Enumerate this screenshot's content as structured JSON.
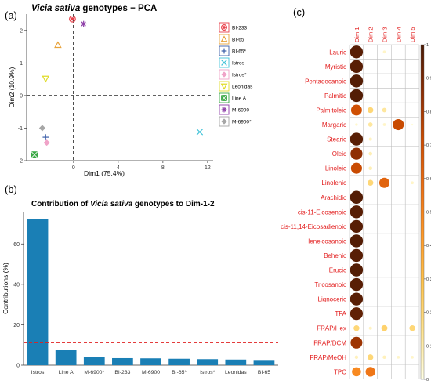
{
  "panels": {
    "a_label": "(a)",
    "b_label": "(b)",
    "c_label": "(c)"
  },
  "chart_data": [
    {
      "type": "scatter",
      "title_italic": "Vicia sativa",
      "title_rest": " genotypes − PCA",
      "xlabel": "Dim1 (75.4%)",
      "ylabel": "Dim2 (10.9%)",
      "xlim": [
        -4.2,
        12.5
      ],
      "ylim": [
        -2.0,
        2.5
      ],
      "xticks": [
        0,
        4,
        8,
        12
      ],
      "yticks": [
        -2,
        -1,
        0,
        1,
        2
      ],
      "points": [
        {
          "name": "BI-233",
          "x": -0.1,
          "y": 2.35,
          "color": "#e8414b",
          "marker": "circle-x"
        },
        {
          "name": "BI-65",
          "x": -1.4,
          "y": 1.55,
          "color": "#e8a33c",
          "marker": "triangle"
        },
        {
          "name": "BI-65*",
          "x": -2.5,
          "y": -1.28,
          "color": "#3b5ea8",
          "marker": "plus"
        },
        {
          "name": "Istros",
          "x": 11.3,
          "y": -1.12,
          "color": "#45c4d9",
          "marker": "x"
        },
        {
          "name": "Istros*",
          "x": -2.4,
          "y": -1.45,
          "color": "#f0a3c8",
          "marker": "diamond"
        },
        {
          "name": "Leonidas",
          "x": -2.5,
          "y": 0.52,
          "color": "#e0dc2a",
          "marker": "triangle-down"
        },
        {
          "name": "Line A",
          "x": -3.5,
          "y": -1.82,
          "color": "#3aa845",
          "marker": "square-x"
        },
        {
          "name": "M-6900",
          "x": 0.9,
          "y": 2.2,
          "color": "#8e3fa8",
          "marker": "asterisk"
        },
        {
          "name": "M-6900*",
          "x": -2.8,
          "y": -1.0,
          "color": "#a6a6a6",
          "marker": "diamond"
        }
      ]
    },
    {
      "type": "bar",
      "title_pre": "Contribution of ",
      "title_italic": "Vicia sativa",
      "title_post": " genotypes to Dim-1-2",
      "ylabel": "Contributions (%)",
      "categories": [
        "Istros",
        "Line A",
        "M-6900*",
        "BI-233",
        "M-6900",
        "BI-65*",
        "Istros*",
        "Leonidas",
        "BI-65"
      ],
      "values": [
        72.5,
        7.5,
        4.0,
        3.5,
        3.4,
        3.2,
        3.0,
        2.8,
        2.2
      ],
      "reference_line": 11.1,
      "ylim": [
        0,
        76
      ],
      "yticks": [
        0,
        20,
        40,
        60
      ],
      "bar_color": "#1a7fb5",
      "reference_color": "#e02020"
    },
    {
      "type": "heatmap",
      "columns": [
        "Dim.1",
        "Dim.2",
        "Dim.3",
        "Dim.4",
        "Dim.5"
      ],
      "rows": [
        "Lauric",
        "Myristic",
        "Pentadecanoic",
        "Palmitic",
        "Palmitoleic",
        "Margaric",
        "Stearic",
        "Oleic",
        "Linoleic",
        "Linolenic",
        "Arachidic",
        "cis-11-Eicosenoic",
        "cis-11,14-Eicosadienoic",
        "Heneicosanoic",
        "Behenic",
        "Erucic",
        "Tricosanoic",
        "Lignoceric",
        "TFA",
        "FRAP/Hex",
        "FRAP/DCM",
        "FRAP/MeOH",
        "TPC"
      ],
      "values": [
        [
          0.97,
          0.0,
          0.05,
          0.0,
          0.0
        ],
        [
          0.97,
          0.0,
          0.0,
          0.0,
          0.0
        ],
        [
          0.98,
          0.0,
          0.0,
          0.0,
          0.0
        ],
        [
          0.98,
          0.0,
          0.0,
          0.0,
          0.0
        ],
        [
          0.7,
          0.2,
          0.12,
          0.0,
          0.0
        ],
        [
          0.04,
          0.12,
          0.05,
          0.72,
          0.02
        ],
        [
          0.97,
          0.06,
          0.0,
          0.0,
          0.0
        ],
        [
          0.85,
          0.08,
          0.0,
          0.0,
          0.0
        ],
        [
          0.72,
          0.08,
          0.0,
          0.0,
          0.0
        ],
        [
          0.0,
          0.2,
          0.62,
          0.0,
          0.05
        ],
        [
          0.98,
          0.0,
          0.0,
          0.0,
          0.0
        ],
        [
          0.97,
          0.0,
          0.0,
          0.0,
          0.0
        ],
        [
          0.97,
          0.0,
          0.0,
          0.0,
          0.0
        ],
        [
          0.98,
          0.0,
          0.0,
          0.0,
          0.0
        ],
        [
          0.97,
          0.0,
          0.0,
          0.0,
          0.0
        ],
        [
          0.98,
          0.0,
          0.0,
          0.0,
          0.0
        ],
        [
          0.97,
          0.0,
          0.0,
          0.0,
          0.0
        ],
        [
          0.97,
          0.0,
          0.0,
          0.0,
          0.0
        ],
        [
          0.95,
          0.0,
          0.0,
          0.0,
          0.0
        ],
        [
          0.2,
          0.06,
          0.22,
          0.0,
          0.2
        ],
        [
          0.82,
          0.0,
          0.0,
          0.0,
          0.0
        ],
        [
          0.07,
          0.2,
          0.07,
          0.05,
          0.05
        ],
        [
          0.48,
          0.55,
          0.0,
          0.0,
          0.0
        ]
      ],
      "colorbar_ticks": [
        0,
        0.1,
        0.2,
        0.3,
        0.4,
        0.5,
        0.6,
        0.7,
        0.8,
        0.9,
        1
      ],
      "colorbar_tick_labels": [
        "0",
        "0.1",
        "0.2",
        "0.3",
        "0.4",
        "0.5",
        "0.6",
        "0.7",
        "0.8",
        "0.9",
        "1"
      ],
      "label_color": "#e21c1c",
      "colormap": [
        "#ffffe5",
        "#fee391",
        "#fec44f",
        "#fe9929",
        "#ec7014",
        "#cc4c02",
        "#8c2d04",
        "#4a1a05"
      ]
    }
  ]
}
